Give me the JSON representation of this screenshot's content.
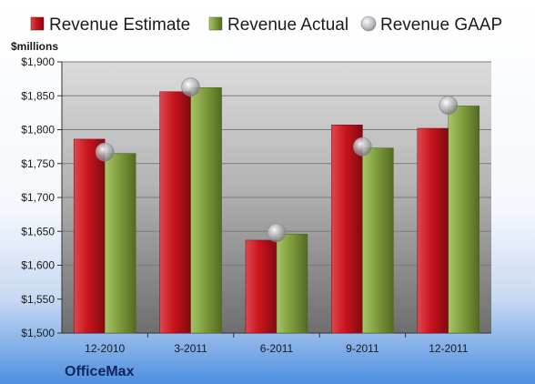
{
  "chart_data": {
    "type": "bar",
    "company": "OfficeMax",
    "ylabel": "$millions",
    "categories": [
      "12-2010",
      "3-2011",
      "6-2011",
      "9-2011",
      "12-2011"
    ],
    "ylim": [
      1500,
      1900
    ],
    "yticks": [
      1500,
      1550,
      1600,
      1650,
      1700,
      1750,
      1800,
      1850,
      1900
    ],
    "ytick_labels": [
      "$1,500",
      "$1,550",
      "$1,600",
      "$1,650",
      "$1,700",
      "$1,750",
      "$1,800",
      "$1,850",
      "$1,900"
    ],
    "grid": true,
    "legend_position": "top",
    "series": [
      {
        "name": "Revenue Estimate",
        "type": "bar",
        "color": "#c8141c",
        "values": [
          1786,
          1856,
          1637,
          1807,
          1802
        ]
      },
      {
        "name": "Revenue Actual",
        "type": "bar",
        "color": "#7f9e3c",
        "values": [
          1765,
          1862,
          1646,
          1773,
          1835
        ]
      },
      {
        "name": "Revenue GAAP",
        "type": "marker",
        "color": "#b4b4bc",
        "values": [
          1767,
          1863,
          1648,
          1775,
          1836
        ]
      }
    ]
  }
}
